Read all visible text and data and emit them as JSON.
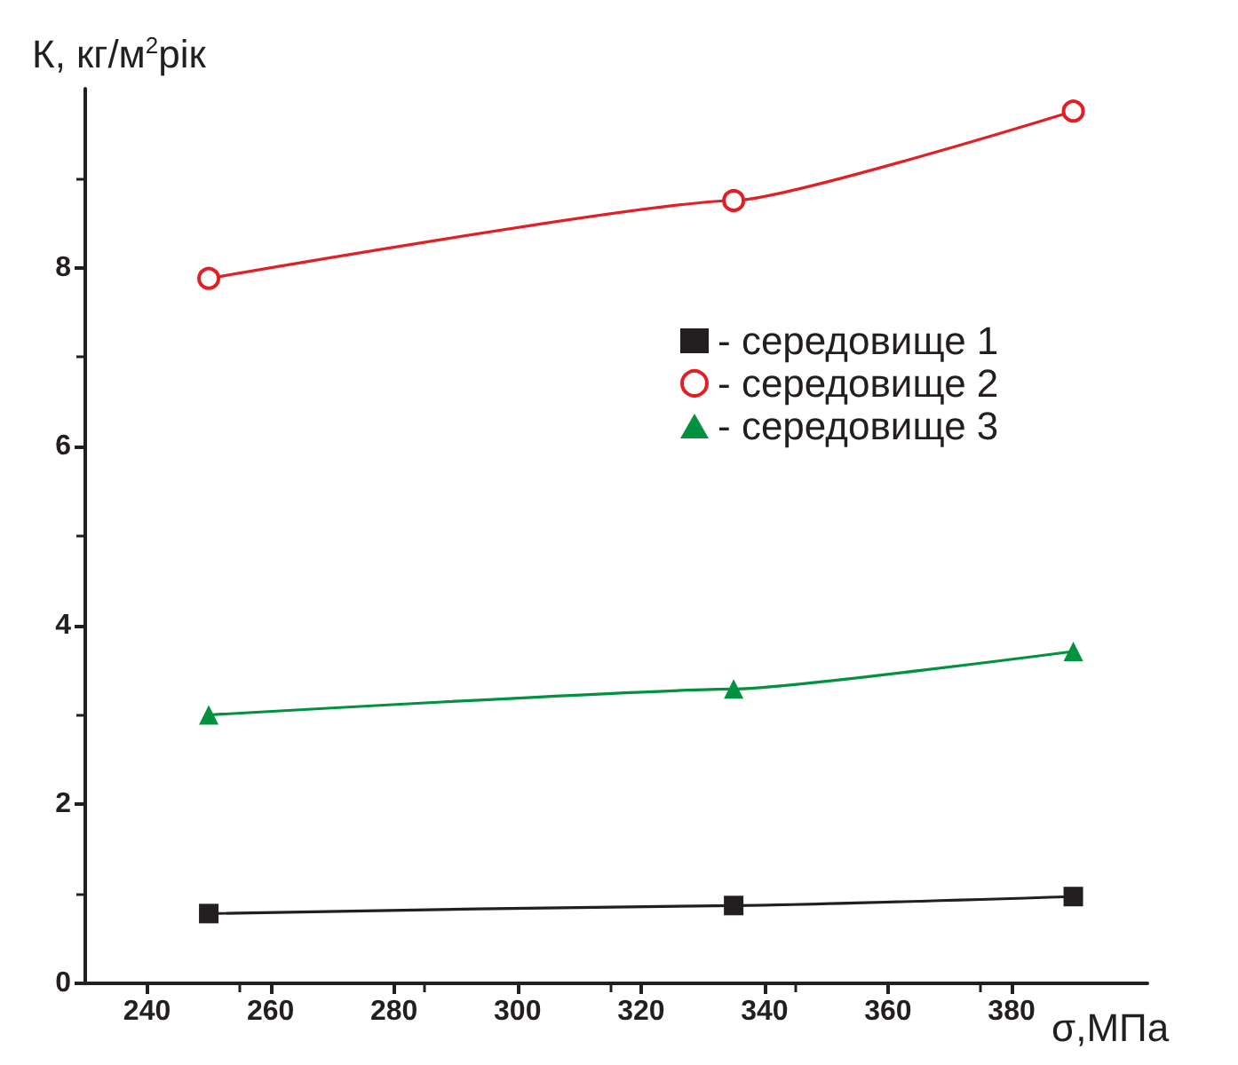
{
  "chart_data": {
    "type": "line",
    "xlabel": "σ,МПа",
    "ylabel": "К, кг/м$^{2}$рік",
    "x": [
      250,
      335,
      390
    ],
    "series": [
      {
        "name": "- середовище 1",
        "color": "#231f20",
        "marker": "square",
        "values": [
          0.78,
          0.87,
          0.97
        ]
      },
      {
        "name": "- середовище 2",
        "color": "#e31e24",
        "marker": "circle",
        "values": [
          7.88,
          8.75,
          9.75
        ]
      },
      {
        "name": "- середовище 3",
        "color": "#00923f",
        "marker": "triangle",
        "values": [
          3.0,
          3.29,
          3.71
        ]
      }
    ],
    "xlim": [
      230,
      402
    ],
    "xticks": [
      240,
      260,
      280,
      300,
      320,
      340,
      360,
      380
    ],
    "ylim": [
      0,
      10
    ],
    "yticks": [
      0,
      2,
      4,
      6,
      8
    ],
    "grid": false,
    "legend": "right",
    "line_style": "solid"
  }
}
